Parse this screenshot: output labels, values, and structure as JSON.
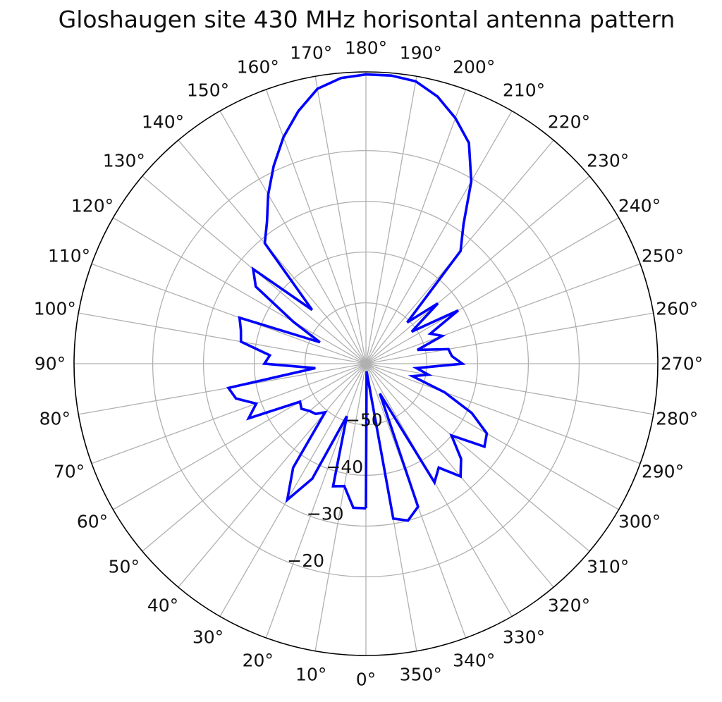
{
  "chart_data": {
    "type": "polar-line",
    "title": "Gloshaugen site 430 MHz horisontal antenna pattern",
    "theta_zero_location": "bottom",
    "theta_direction": "clockwise",
    "theta_unit": "degrees",
    "theta_ticks": [
      0,
      10,
      20,
      30,
      40,
      50,
      60,
      70,
      80,
      90,
      100,
      110,
      120,
      130,
      140,
      150,
      160,
      170,
      180,
      190,
      200,
      210,
      220,
      230,
      240,
      250,
      260,
      270,
      280,
      290,
      300,
      310,
      320,
      330,
      340,
      350
    ],
    "theta_tick_labels": [
      "0°",
      "10°",
      "20°",
      "30°",
      "40°",
      "50°",
      "60°",
      "70°",
      "80°",
      "90°",
      "100°",
      "110°",
      "120°",
      "130°",
      "140°",
      "150°",
      "160°",
      "170°",
      "180°",
      "190°",
      "200°",
      "210°",
      "220°",
      "230°",
      "240°",
      "250°",
      "260°",
      "270°",
      "280°",
      "290°",
      "300°",
      "310°",
      "320°",
      "330°",
      "340°",
      "350°"
    ],
    "r_range": [
      -62,
      -4.5
    ],
    "r_ticks": [
      -50,
      -40,
      -30,
      -20
    ],
    "r_tick_labels": [
      "−50",
      "−40",
      "−30",
      "−20"
    ],
    "grid": true,
    "series": [
      {
        "color": "#0000ff",
        "points": [
          [
            0,
            -33.5
          ],
          [
            5,
            -33.5
          ],
          [
            10,
            -37.5
          ],
          [
            15,
            -37.0
          ],
          [
            20,
            -51.0
          ],
          [
            25,
            -37.0
          ],
          [
            30,
            -31.0
          ],
          [
            35,
            -37.0
          ],
          [
            40,
            -49.5
          ],
          [
            45,
            -48.0
          ],
          [
            50,
            -47.5
          ],
          [
            55,
            -46.5
          ],
          [
            60,
            -47.0
          ],
          [
            65,
            -36.5
          ],
          [
            70,
            -39.0
          ],
          [
            75,
            -35.5
          ],
          [
            80,
            -34.5
          ],
          [
            85,
            -52.0
          ],
          [
            90,
            -42.0
          ],
          [
            95,
            -43.0
          ],
          [
            100,
            -37.0
          ],
          [
            105,
            -36.5
          ],
          [
            110,
            -35.5
          ],
          [
            115,
            -52.0
          ],
          [
            120,
            -45.5
          ],
          [
            125,
            -35.5
          ],
          [
            130,
            -33.0
          ],
          [
            135,
            -47.0
          ],
          [
            140,
            -31.0
          ],
          [
            145,
            -28.0
          ],
          [
            150,
            -23.5
          ],
          [
            155,
            -19.0
          ],
          [
            160,
            -14.5
          ],
          [
            165,
            -10.5
          ],
          [
            170,
            -7.0
          ],
          [
            175,
            -5.5
          ],
          [
            180,
            -5.0
          ],
          [
            185,
            -5.0
          ],
          [
            190,
            -5.5
          ],
          [
            195,
            -7.5
          ],
          [
            200,
            -10.5
          ],
          [
            205,
            -14.0
          ],
          [
            210,
            -20.5
          ],
          [
            215,
            -28.5
          ],
          [
            220,
            -33.0
          ],
          [
            225,
            -50.5
          ],
          [
            230,
            -43.5
          ],
          [
            235,
            -51.0
          ],
          [
            240,
            -41.0
          ],
          [
            245,
            -48.0
          ],
          [
            250,
            -46.0
          ],
          [
            255,
            -51.5
          ],
          [
            260,
            -45.5
          ],
          [
            265,
            -45.0
          ],
          [
            270,
            -43.0
          ],
          [
            275,
            -52.0
          ],
          [
            280,
            -49.5
          ],
          [
            285,
            -52.5
          ],
          [
            290,
            -45.5
          ],
          [
            295,
            -39.0
          ],
          [
            300,
            -34.5
          ],
          [
            305,
            -33.5
          ],
          [
            310,
            -40.0
          ],
          [
            315,
            -35.5
          ],
          [
            320,
            -33.0
          ],
          [
            325,
            -37.0
          ],
          [
            330,
            -35.0
          ],
          [
            335,
            -55.5
          ],
          [
            340,
            -32.0
          ],
          [
            345,
            -30.0
          ],
          [
            350,
            -31.0
          ],
          [
            355,
            -60.5
          ],
          [
            360,
            -33.5
          ]
        ]
      }
    ]
  }
}
